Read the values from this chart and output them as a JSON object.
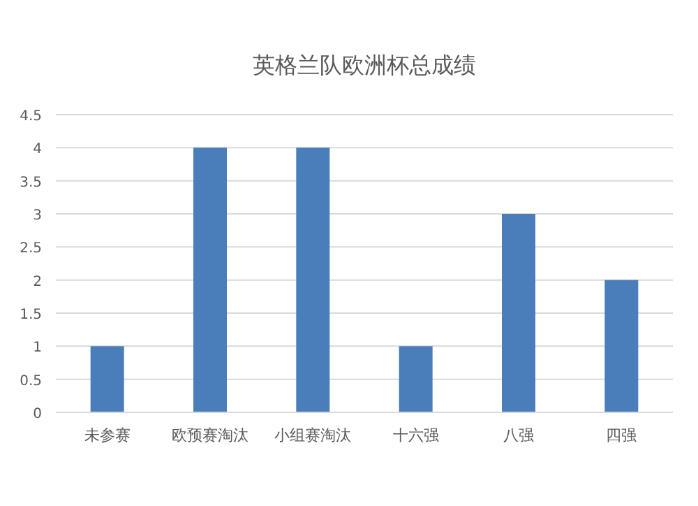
{
  "chart_data": {
    "type": "bar",
    "title": "英格兰队欧洲杯总成绩",
    "categories": [
      "未参赛",
      "欧预赛淘汰",
      "小组赛淘汰",
      "十六强",
      "八强",
      "四强"
    ],
    "values": [
      1,
      4,
      4,
      1,
      3,
      2
    ],
    "color": "#4a7ebb",
    "ylim": [
      0,
      4.5
    ],
    "yticks": [
      0,
      0.5,
      1,
      1.5,
      2,
      2.5,
      3,
      3.5,
      4,
      4.5
    ],
    "grid": "y"
  }
}
